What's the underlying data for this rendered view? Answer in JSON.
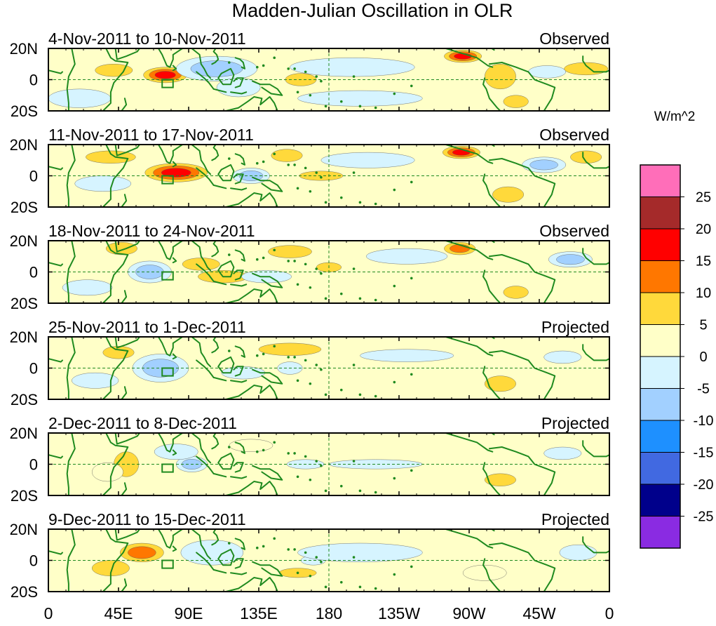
{
  "chart_data": {
    "type": "heatmap",
    "title": "Madden-Julian Oscillation in OLR",
    "units_label": "W/m^2",
    "y_ticks": [
      "20N",
      "0",
      "20S"
    ],
    "x_ticks": [
      "0",
      "45E",
      "90E",
      "135E",
      "180",
      "135W",
      "90W",
      "45W",
      "0"
    ],
    "x_range_deg": [
      0,
      360
    ],
    "y_range_deg": [
      -20,
      20
    ],
    "colorbar": {
      "labels": [
        "25",
        "20",
        "15",
        "10",
        "5",
        "0",
        "-5",
        "-10",
        "-15",
        "-20",
        "-25"
      ],
      "colors": [
        "#ff6eb9",
        "#a52a2a",
        "#ff0000",
        "#ff7700",
        "#ffd93b",
        "#ffffc8",
        "#d6f4ff",
        "#a2d0ff",
        "#1e90ff",
        "#4169e1",
        "#00008b",
        "#8a2be2"
      ]
    },
    "region_box": {
      "lon_min": 73,
      "lon_max": 80,
      "lat_min": -5,
      "lat_max": 0
    },
    "panels": [
      {
        "period": "4-Nov-2011 to 10-Nov-2011",
        "status": "Observed",
        "anomalies": [
          {
            "lon": 75,
            "lat": 3,
            "rx": 14,
            "ry": 5,
            "v": 17
          },
          {
            "lon": 42,
            "lat": 6,
            "rx": 12,
            "ry": 4,
            "v": 8
          },
          {
            "lon": 108,
            "lat": 7,
            "rx": 26,
            "ry": 8,
            "v": -14
          },
          {
            "lon": 122,
            "lat": -5,
            "rx": 14,
            "ry": 6,
            "v": -8
          },
          {
            "lon": 162,
            "lat": 0,
            "rx": 10,
            "ry": 4,
            "v": 7
          },
          {
            "lon": 195,
            "lat": 8,
            "rx": 40,
            "ry": 6,
            "v": -4
          },
          {
            "lon": 266,
            "lat": 15,
            "rx": 12,
            "ry": 4,
            "v": 17
          },
          {
            "lon": 290,
            "lat": 2,
            "rx": 10,
            "ry": 8,
            "v": 9
          },
          {
            "lon": 300,
            "lat": -14,
            "rx": 8,
            "ry": 4,
            "v": 10
          },
          {
            "lon": 320,
            "lat": 5,
            "rx": 12,
            "ry": 4,
            "v": -8
          },
          {
            "lon": 345,
            "lat": 7,
            "rx": 14,
            "ry": 4,
            "v": 9
          },
          {
            "lon": 20,
            "lat": -12,
            "rx": 20,
            "ry": 6,
            "v": -4
          },
          {
            "lon": 200,
            "lat": -12,
            "rx": 40,
            "ry": 5,
            "v": -4
          }
        ]
      },
      {
        "period": "11-Nov-2011 to 17-Nov-2011",
        "status": "Observed",
        "anomalies": [
          {
            "lon": 82,
            "lat": 2,
            "rx": 20,
            "ry": 6,
            "v": 16
          },
          {
            "lon": 40,
            "lat": 12,
            "rx": 16,
            "ry": 4,
            "v": 7
          },
          {
            "lon": 130,
            "lat": 0,
            "rx": 12,
            "ry": 5,
            "v": -12
          },
          {
            "lon": 153,
            "lat": 13,
            "rx": 10,
            "ry": 4,
            "v": 9
          },
          {
            "lon": 175,
            "lat": 0,
            "rx": 14,
            "ry": 3,
            "v": 8
          },
          {
            "lon": 205,
            "lat": 10,
            "rx": 30,
            "ry": 5,
            "v": -9
          },
          {
            "lon": 265,
            "lat": 15,
            "rx": 12,
            "ry": 4,
            "v": 17
          },
          {
            "lon": 295,
            "lat": -12,
            "rx": 10,
            "ry": 5,
            "v": 10
          },
          {
            "lon": 318,
            "lat": 7,
            "rx": 14,
            "ry": 5,
            "v": -13
          },
          {
            "lon": 35,
            "lat": -5,
            "rx": 18,
            "ry": 5,
            "v": -5
          },
          {
            "lon": 345,
            "lat": 12,
            "rx": 10,
            "ry": 4,
            "v": 7
          }
        ]
      },
      {
        "period": "18-Nov-2011 to 24-Nov-2011",
        "status": "Observed",
        "anomalies": [
          {
            "lon": 65,
            "lat": 0,
            "rx": 14,
            "ry": 7,
            "v": -13
          },
          {
            "lon": 47,
            "lat": 15,
            "rx": 10,
            "ry": 4,
            "v": 7
          },
          {
            "lon": 98,
            "lat": 5,
            "rx": 12,
            "ry": 4,
            "v": 9
          },
          {
            "lon": 112,
            "lat": -3,
            "rx": 16,
            "ry": 4,
            "v": 7
          },
          {
            "lon": 155,
            "lat": 13,
            "rx": 14,
            "ry": 4,
            "v": 9
          },
          {
            "lon": 140,
            "lat": -3,
            "rx": 16,
            "ry": 4,
            "v": -7
          },
          {
            "lon": 180,
            "lat": 3,
            "rx": 8,
            "ry": 3,
            "v": 7
          },
          {
            "lon": 230,
            "lat": 10,
            "rx": 26,
            "ry": 5,
            "v": -5
          },
          {
            "lon": 264,
            "lat": 15,
            "rx": 10,
            "ry": 4,
            "v": 12
          },
          {
            "lon": 335,
            "lat": 8,
            "rx": 14,
            "ry": 5,
            "v": -13
          },
          {
            "lon": 300,
            "lat": -13,
            "rx": 8,
            "ry": 4,
            "v": 9
          },
          {
            "lon": 25,
            "lat": -10,
            "rx": 16,
            "ry": 5,
            "v": -5
          }
        ]
      },
      {
        "period": "25-Nov-2011 to 1-Dec-2011",
        "status": "Projected",
        "anomalies": [
          {
            "lon": 72,
            "lat": 0,
            "rx": 18,
            "ry": 9,
            "v": -13
          },
          {
            "lon": 125,
            "lat": -3,
            "rx": 14,
            "ry": 4,
            "v": -6
          },
          {
            "lon": 155,
            "lat": 0,
            "rx": 8,
            "ry": 4,
            "v": -10
          },
          {
            "lon": 155,
            "lat": 12,
            "rx": 20,
            "ry": 4,
            "v": 6
          },
          {
            "lon": 45,
            "lat": 10,
            "rx": 10,
            "ry": 4,
            "v": 6
          },
          {
            "lon": 290,
            "lat": -10,
            "rx": 10,
            "ry": 5,
            "v": 7
          },
          {
            "lon": 330,
            "lat": 7,
            "rx": 12,
            "ry": 4,
            "v": -5
          },
          {
            "lon": 230,
            "lat": 8,
            "rx": 30,
            "ry": 4,
            "v": -4
          },
          {
            "lon": 30,
            "lat": -8,
            "rx": 15,
            "ry": 5,
            "v": -5
          }
        ]
      },
      {
        "period": "2-Dec-2011 to 8-Dec-2011",
        "status": "Projected",
        "anomalies": [
          {
            "lon": 92,
            "lat": 0,
            "rx": 10,
            "ry": 5,
            "v": -12
          },
          {
            "lon": 82,
            "lat": 8,
            "rx": 14,
            "ry": 5,
            "v": -7
          },
          {
            "lon": 50,
            "lat": 0,
            "rx": 8,
            "ry": 8,
            "v": 8
          },
          {
            "lon": 38,
            "lat": -5,
            "rx": 10,
            "ry": 6,
            "v": 4
          },
          {
            "lon": 165,
            "lat": 0,
            "rx": 12,
            "ry": 3,
            "v": -5
          },
          {
            "lon": 210,
            "lat": 0,
            "rx": 30,
            "ry": 3,
            "v": -4
          },
          {
            "lon": 290,
            "lat": -10,
            "rx": 10,
            "ry": 4,
            "v": 6
          },
          {
            "lon": 330,
            "lat": 7,
            "rx": 12,
            "ry": 4,
            "v": -5
          },
          {
            "lon": 130,
            "lat": 12,
            "rx": 14,
            "ry": 4,
            "v": 4
          }
        ]
      },
      {
        "period": "9-Dec-2011 to 15-Dec-2011",
        "status": "Projected",
        "anomalies": [
          {
            "lon": 60,
            "lat": 5,
            "rx": 14,
            "ry": 6,
            "v": 11
          },
          {
            "lon": 40,
            "lat": -5,
            "rx": 12,
            "ry": 5,
            "v": 5
          },
          {
            "lon": 105,
            "lat": 5,
            "rx": 20,
            "ry": 8,
            "v": -5
          },
          {
            "lon": 160,
            "lat": -8,
            "rx": 12,
            "ry": 3,
            "v": 5
          },
          {
            "lon": 170,
            "lat": 0,
            "rx": 8,
            "ry": 3,
            "v": -5
          },
          {
            "lon": 200,
            "lat": 5,
            "rx": 40,
            "ry": 6,
            "v": -3
          },
          {
            "lon": 280,
            "lat": -8,
            "rx": 14,
            "ry": 5,
            "v": 4
          },
          {
            "lon": 340,
            "lat": 5,
            "rx": 12,
            "ry": 5,
            "v": -4
          }
        ]
      }
    ]
  }
}
